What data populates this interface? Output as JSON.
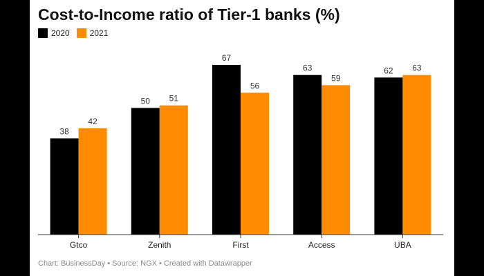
{
  "title": "Cost-to-Income ratio of Tier-1 banks (%)",
  "footer": "Chart: BusinessDay • Source: NGX • Created with Datawrapper",
  "colors": {
    "2020": "#000000",
    "2021": "#ff8c00"
  },
  "chart_data": {
    "type": "bar",
    "title": "Cost-to-Income ratio of Tier-1 banks (%)",
    "categories": [
      "Gtco",
      "Zenith",
      "First",
      "Access",
      "UBA"
    ],
    "series": [
      {
        "name": "2020",
        "values": [
          38,
          50,
          67,
          63,
          62
        ]
      },
      {
        "name": "2021",
        "values": [
          42,
          51,
          56,
          59,
          63
        ]
      }
    ],
    "ylim": [
      0,
      70
    ],
    "grid": false,
    "legend": "top-left",
    "data_labels": true
  }
}
